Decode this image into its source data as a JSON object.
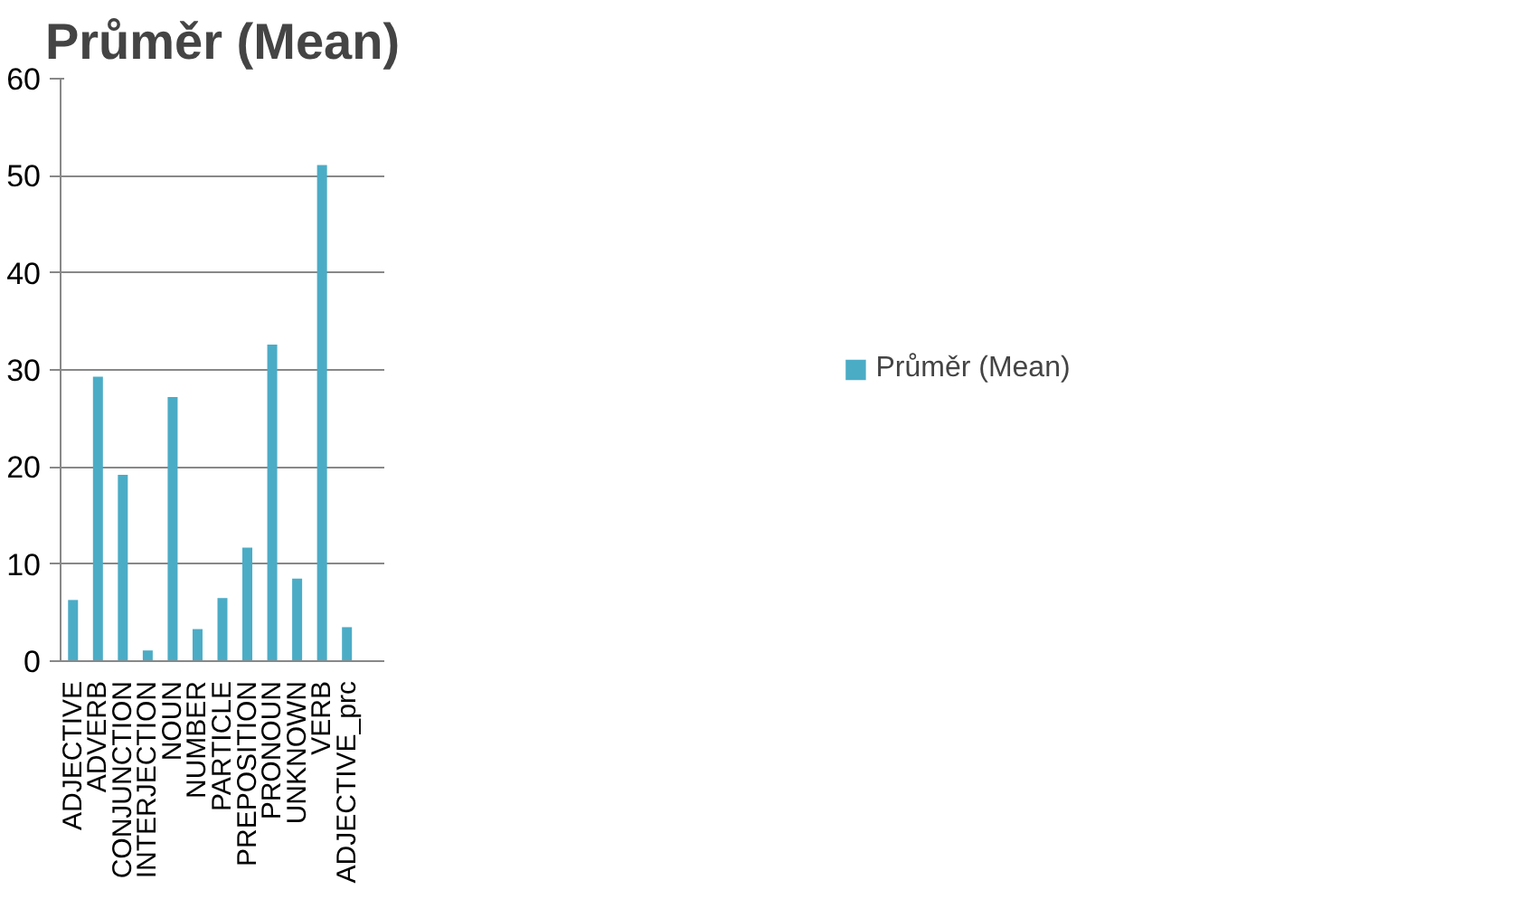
{
  "chart_data": {
    "type": "bar",
    "title": "Průměr (Mean)",
    "categories": [
      "ADJECTIVE",
      "ADVERB",
      "CONJUNCTION",
      "INTERJECTION",
      "NOUN",
      "NUMBER",
      "PARTICLE",
      "PREPOSITION",
      "PRONOUN",
      "UNKNOWN",
      "VERB",
      "ADJECTIVE_prc",
      null
    ],
    "series": [
      {
        "name": "Průměr (Mean)",
        "color": "#4bacc6",
        "values": [
          6.3,
          29.3,
          19.2,
          1.1,
          27.2,
          3.3,
          6.5,
          11.7,
          32.6,
          8.5,
          51.1,
          3.5,
          null
        ]
      }
    ],
    "ylim": [
      0,
      60
    ],
    "yticks": [
      0,
      10,
      20,
      30,
      40,
      50,
      60
    ],
    "grid": "y",
    "legend": "right"
  }
}
